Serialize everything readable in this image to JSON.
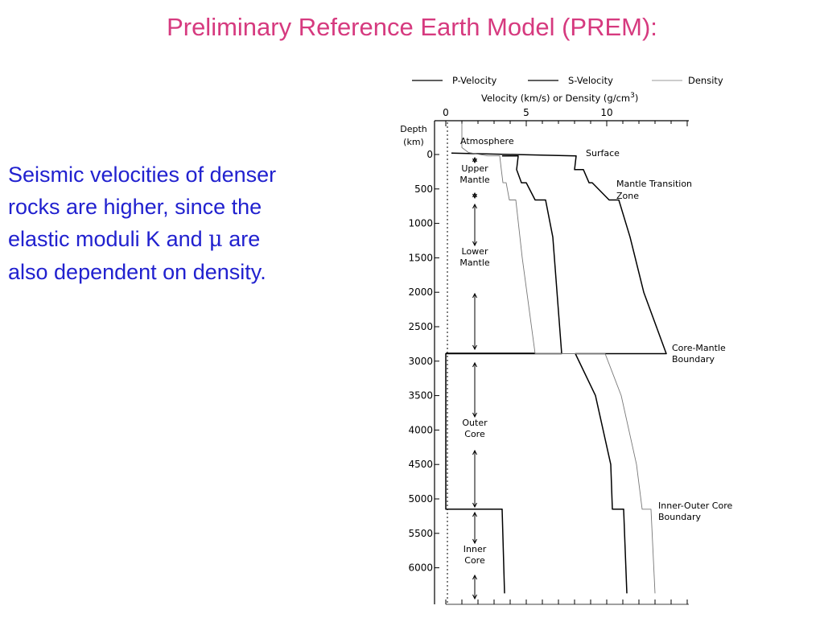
{
  "slide": {
    "title": "Preliminary Reference Earth Model (PREM):",
    "text_line1": "Seismic velocities of denser",
    "text_line2": "rocks are higher, since the",
    "text_line3_pre": "elastic moduli K and ",
    "text_line3_mu": "μ",
    "text_line3_post": " are",
    "text_line4": "also dependent on density."
  },
  "colors": {
    "title": "#d63a7f",
    "text": "#2121cf",
    "ink": "#000000",
    "density": "#777777"
  },
  "chart_data": {
    "type": "line",
    "title": "",
    "xlabel": "Velocity (km/s) or Density (g/cm",
    "xlabel_sup": "3",
    "xlabel_close": ")",
    "ylabel": "Depth",
    "ylabel_unit": "(km)",
    "x_ticks": [
      "0",
      "5",
      "10"
    ],
    "x_tick_values": [
      0,
      5,
      10
    ],
    "y_ticks": [
      "0",
      "500",
      "1000",
      "1500",
      "2000",
      "2500",
      "3000",
      "3500",
      "4000",
      "4500",
      "5000",
      "5500",
      "6000"
    ],
    "y_tick_values": [
      0,
      500,
      1000,
      1500,
      2000,
      2500,
      3000,
      3500,
      4000,
      4500,
      5000,
      5500,
      6000
    ],
    "xlim": [
      0,
      15
    ],
    "ylim": [
      -450,
      6371
    ],
    "axis_position": "top",
    "legend_position": "top",
    "legend": [
      "P-Velocity",
      "S-Velocity",
      "Density"
    ],
    "series": [
      {
        "name": "P-Velocity",
        "points": [
          [
            0.35,
            -20
          ],
          [
            8.1,
            20
          ],
          [
            8.0,
            220
          ],
          [
            8.55,
            220
          ],
          [
            8.9,
            410
          ],
          [
            9.1,
            410
          ],
          [
            10.15,
            660
          ],
          [
            10.75,
            660
          ],
          [
            11.45,
            1200
          ],
          [
            12.3,
            2000
          ],
          [
            13.7,
            2891
          ],
          [
            8.05,
            2891
          ],
          [
            9.3,
            3500
          ],
          [
            10.25,
            4500
          ],
          [
            10.35,
            5150
          ],
          [
            11.05,
            5150
          ],
          [
            11.25,
            6371
          ]
        ]
      },
      {
        "name": "S-Velocity",
        "points": [
          [
            3.5,
            20
          ],
          [
            4.5,
            20
          ],
          [
            4.4,
            220
          ],
          [
            4.7,
            410
          ],
          [
            5.0,
            410
          ],
          [
            5.55,
            660
          ],
          [
            6.2,
            660
          ],
          [
            6.65,
            1200
          ],
          [
            7.2,
            2891
          ],
          [
            0,
            2891
          ],
          [
            0,
            5150
          ],
          [
            3.5,
            5150
          ],
          [
            3.65,
            6371
          ]
        ]
      },
      {
        "name": "Density",
        "points": [
          [
            1.0,
            -450
          ],
          [
            1.0,
            -100
          ],
          [
            1.4,
            -30
          ],
          [
            2.6,
            20
          ],
          [
            3.35,
            20
          ],
          [
            3.45,
            220
          ],
          [
            3.55,
            410
          ],
          [
            3.75,
            410
          ],
          [
            3.95,
            660
          ],
          [
            4.35,
            660
          ],
          [
            4.75,
            1500
          ],
          [
            5.55,
            2891
          ],
          [
            9.9,
            2891
          ],
          [
            10.9,
            3500
          ],
          [
            11.85,
            4500
          ],
          [
            12.2,
            5150
          ],
          [
            12.75,
            5150
          ],
          [
            13.0,
            6371
          ]
        ]
      }
    ],
    "annotations": [
      "Atmosphere",
      "Surface",
      "Mantle Transition",
      "Zone",
      "Core-Mantle",
      "Boundary",
      "Inner-Outer Core",
      "Boundary"
    ],
    "region_labels": [
      {
        "line1": "Upper",
        "line2": "Mantle",
        "y_from": 0,
        "y_to": 660
      },
      {
        "line1": "Lower",
        "line2": "Mantle",
        "y_from": 660,
        "y_to": 2891
      },
      {
        "line1": "Outer",
        "line2": "Core",
        "y_from": 2891,
        "y_to": 5150
      },
      {
        "line1": "Inner",
        "line2": "Core",
        "y_from": 5150,
        "y_to": 6371
      }
    ],
    "boundaries": [
      2891,
      5150
    ]
  }
}
